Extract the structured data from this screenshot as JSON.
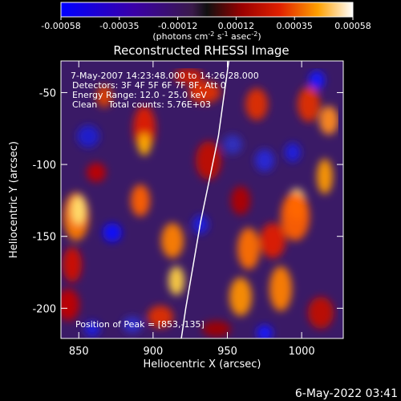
{
  "colorbar": {
    "ticks": [
      "-0.00058",
      "-0.00035",
      "-0.00012",
      "0.00012",
      "0.00035",
      "0.00058"
    ],
    "units_label": "(photons cm",
    "units_exp1": "-2",
    "units_s": " s",
    "units_exp2": "-1",
    "units_asec": " asec",
    "units_exp3": "-2",
    "units_close": ")"
  },
  "chart_data": {
    "type": "heatmap",
    "title": "Reconstructed RHESSI Image",
    "xlabel": "Heliocentric X (arcsec)",
    "ylabel": "Heliocentric Y (arcsec)",
    "xlim": [
      838,
      1028
    ],
    "ylim": [
      -221,
      -28
    ],
    "xticks": [
      850,
      900,
      950,
      1000
    ],
    "xtick_labels": [
      "850",
      "900",
      "950",
      "1000"
    ],
    "yticks": [
      -50,
      -100,
      -150,
      -200
    ],
    "ytick_labels": [
      "-50",
      "-100",
      "-150",
      "-200"
    ],
    "value_range": [
      -0.00058,
      0.00058
    ],
    "annotations": [
      "7-May-2007 14:23:48.000 to 14:26:28.000",
      "Detectors: 3F 4F 5F 6F 7F 8F, Att 0",
      "Energy Range: 12.0 - 25.0 keV",
      "Clean    Total counts: 5.76E+03"
    ],
    "peak_label": "Position of Peak = [853,-135]",
    "peak": [
      853,
      -135
    ],
    "limb": [
      [
        951,
        -28
      ],
      [
        948,
        -50
      ],
      [
        944,
        -80
      ],
      [
        938,
        -110
      ],
      [
        932,
        -140
      ],
      [
        927,
        -170
      ],
      [
        922,
        -200
      ],
      [
        919,
        -221
      ]
    ]
  },
  "footer_date": "6-May-2022 03:41"
}
